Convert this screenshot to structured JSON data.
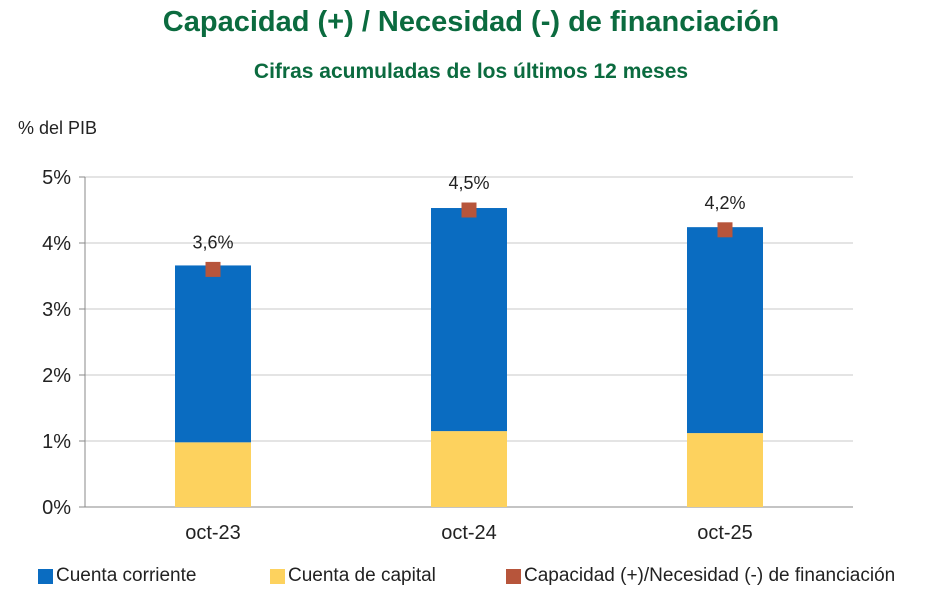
{
  "chart_data": {
    "type": "bar",
    "stacked": true,
    "title": "Capacidad (+) / Necesidad (-) de financiación",
    "subtitle": "Cifras acumuladas de los últimos 12 meses",
    "ylabel": "% del PIB",
    "xlabel": "",
    "ylim": [
      0,
      5
    ],
    "yticks": [
      "0%",
      "1%",
      "2%",
      "3%",
      "4%",
      "5%"
    ],
    "categories": [
      "oct-23",
      "oct-24",
      "oct-25"
    ],
    "series": [
      {
        "name": "Cuenta de capital",
        "values": [
          0.98,
          1.15,
          1.12
        ],
        "color": "#fdd25e"
      },
      {
        "name": "Cuenta corriente",
        "values": [
          2.68,
          3.38,
          3.12
        ],
        "color": "#0a6cc1"
      }
    ],
    "marker_series": {
      "name": "Capacidad (+)/Necesidad (-) de financiación",
      "values": [
        3.6,
        4.5,
        4.2
      ],
      "labels": [
        "3,6%",
        "4,5%",
        "4,2%"
      ],
      "color": "#b7553b"
    },
    "legend": [
      {
        "label": "Cuenta corriente",
        "color": "#0a6cc1"
      },
      {
        "label": "Cuenta de capital",
        "color": "#fdd25e"
      },
      {
        "label": "Capacidad (+)/Necesidad (-) de financiación",
        "color": "#b7553b"
      }
    ],
    "grid": true,
    "legend_position": "bottom"
  }
}
